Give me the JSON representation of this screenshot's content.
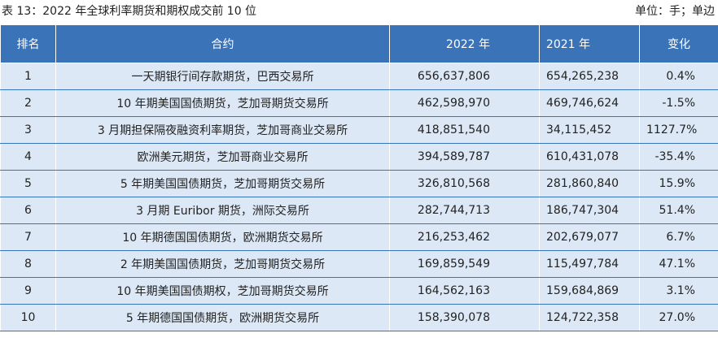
{
  "caption": {
    "title": "表 13：2022 年全球利率期货和期权成交前 10 位",
    "unit": "单位：手；单边"
  },
  "table": {
    "header": [
      "排名",
      "合约",
      "2022 年",
      "2021 年",
      "变化"
    ],
    "rows": [
      [
        "1",
        "一天期银行间存款期货，巴西交易所",
        "656,637,806",
        "654,265,238",
        "0.4%"
      ],
      [
        "2",
        "10 年期美国国债期货，芝加哥期货交易所",
        "462,598,970",
        "469,746,624",
        "-1.5%"
      ],
      [
        "3",
        "3 月期担保隔夜融资利率期货，芝加哥商业交易所",
        "418,851,540",
        "34,115,452",
        "1127.7%"
      ],
      [
        "4",
        "欧洲美元期货，芝加哥商业交易所",
        "394,589,787",
        "610,431,078",
        "-35.4%"
      ],
      [
        "5",
        "5 年期美国国债期货，芝加哥期货交易所",
        "326,810,568",
        "281,860,840",
        "15.9%"
      ],
      [
        "6",
        "3 月期 Euribor 期货，洲际交易所",
        "282,744,713",
        "186,747,304",
        "51.4%"
      ],
      [
        "7",
        "10 年期德国国债期货，欧洲期货交易所",
        "216,253,462",
        "202,679,077",
        "6.7%"
      ],
      [
        "8",
        "2 年期美国国债期货，芝加哥期货交易所",
        "169,859,549",
        "115,497,784",
        "47.1%"
      ],
      [
        "9",
        "10 年期美国国债期权，芝加哥期货交易所",
        "164,562,163",
        "159,684,869",
        "3.1%"
      ],
      [
        "10",
        "5 年期德国国债期货，欧洲期货交易所",
        "158,390,078",
        "124,722,358",
        "27.0%"
      ]
    ]
  }
}
